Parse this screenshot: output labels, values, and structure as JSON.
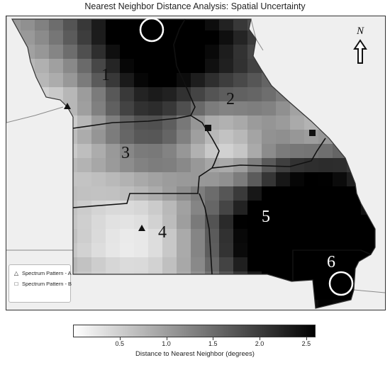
{
  "title": "Nearest Neighbor Distance Analysis: Spatial Uncertainty",
  "north_label": "N",
  "regions": [
    {
      "label": "1"
    },
    {
      "label": "2"
    },
    {
      "label": "3"
    },
    {
      "label": "4"
    },
    {
      "label": "5"
    },
    {
      "label": "6"
    }
  ],
  "legend": {
    "items": [
      {
        "symbol": "△",
        "label": "Spectrum Pattern - A"
      },
      {
        "symbol": "□",
        "label": "Spectrum Pattern - B"
      }
    ]
  },
  "colorbar": {
    "label": "Distance to Nearest Neighbor (degrees)",
    "min": 0.0,
    "max": 2.6,
    "ticks": [
      "0.5",
      "1.0",
      "1.5",
      "2.0",
      "2.5"
    ],
    "color_low": "#ffffff",
    "color_high": "#000000"
  }
}
